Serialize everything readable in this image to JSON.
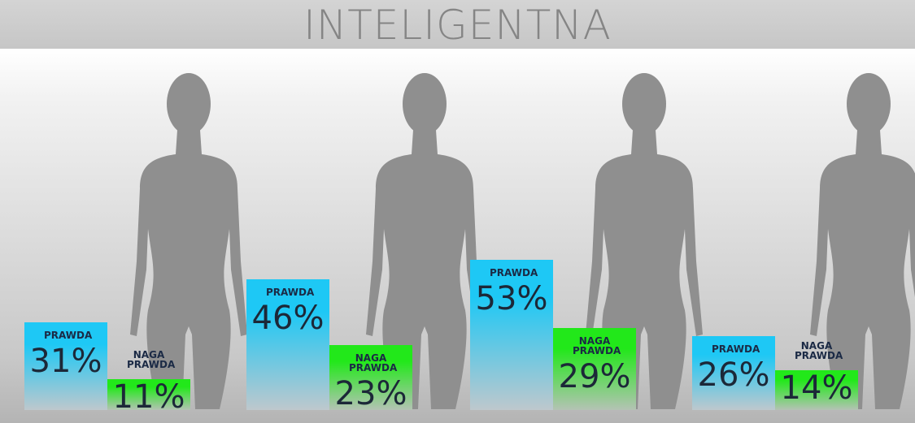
{
  "chart_data": {
    "type": "bar",
    "title": "INTELIGENTNA",
    "categories": [
      null,
      null,
      null,
      null
    ],
    "series": [
      {
        "name": "PRAWDA",
        "color": "#1ec8f5",
        "values": [
          31,
          46,
          53,
          26
        ],
        "value_labels": [
          "31%",
          "46%",
          "53%",
          "26%"
        ]
      },
      {
        "name": "NAGA PRAWDA",
        "color": "#22e81a",
        "values": [
          11,
          23,
          29,
          14
        ],
        "value_labels": [
          "11%",
          "23%",
          "29%",
          "14%"
        ]
      }
    ]
  }
}
